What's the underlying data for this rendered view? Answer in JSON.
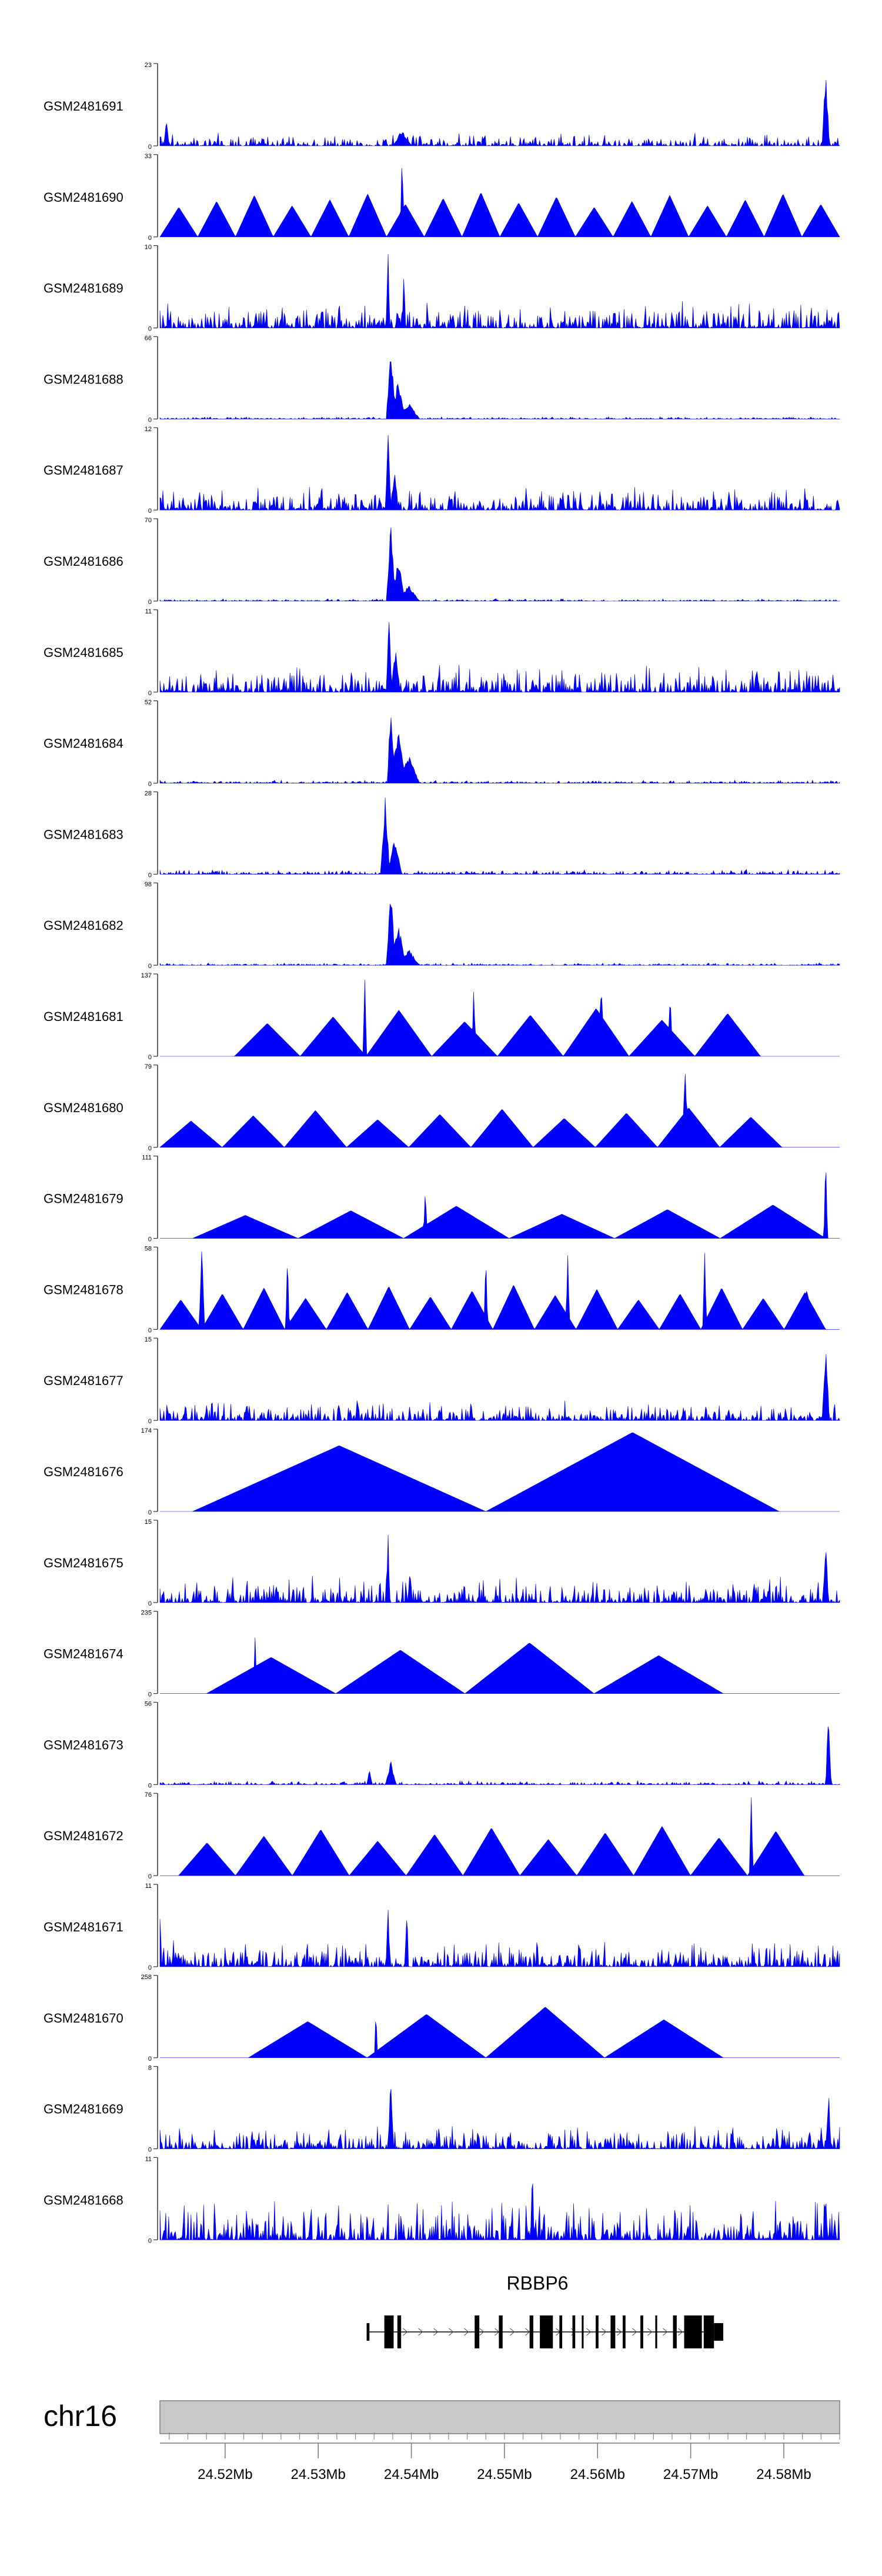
{
  "chart_data": {
    "type": "area",
    "title": "",
    "color": "#0000ff",
    "chromosome": "chr16",
    "x_range": [
      24.513,
      24.586
    ],
    "x_unit": "Mb",
    "x_ticks": [
      {
        "value": 24.52,
        "label": "24.52Mb"
      },
      {
        "value": 24.53,
        "label": "24.53Mb"
      },
      {
        "value": 24.54,
        "label": "24.54Mb"
      },
      {
        "value": 24.55,
        "label": "24.55Mb"
      },
      {
        "value": 24.56,
        "label": "24.56Mb"
      },
      {
        "value": 24.57,
        "label": "24.57Mb"
      },
      {
        "value": 24.58,
        "label": "24.58Mb"
      }
    ],
    "gene": {
      "name": "RBBP6",
      "start": 24.5352,
      "end": 24.5735,
      "strand": "+",
      "exons": [
        {
          "start": 24.5352,
          "end": 24.5355,
          "thick": false
        },
        {
          "start": 24.5371,
          "end": 24.5381,
          "thick": true
        },
        {
          "start": 24.5385,
          "end": 24.5389,
          "thick": true
        },
        {
          "start": 24.5468,
          "end": 24.5473,
          "thick": true
        },
        {
          "start": 24.5494,
          "end": 24.5498,
          "thick": true
        },
        {
          "start": 24.5527,
          "end": 24.5531,
          "thick": true
        },
        {
          "start": 24.5538,
          "end": 24.5552,
          "thick": true
        },
        {
          "start": 24.5559,
          "end": 24.5562,
          "thick": true
        },
        {
          "start": 24.5573,
          "end": 24.5576,
          "thick": true
        },
        {
          "start": 24.5583,
          "end": 24.5585,
          "thick": true
        },
        {
          "start": 24.5598,
          "end": 24.5601,
          "thick": true
        },
        {
          "start": 24.5614,
          "end": 24.5619,
          "thick": true
        },
        {
          "start": 24.5627,
          "end": 24.563,
          "thick": true
        },
        {
          "start": 24.5646,
          "end": 24.5649,
          "thick": true
        },
        {
          "start": 24.5662,
          "end": 24.5664,
          "thick": true
        },
        {
          "start": 24.5681,
          "end": 24.5685,
          "thick": true
        },
        {
          "start": 24.5693,
          "end": 24.5712,
          "thick": true
        },
        {
          "start": 24.5714,
          "end": 24.5725,
          "thick": true
        },
        {
          "start": 24.5725,
          "end": 24.5735,
          "thick": false
        }
      ]
    },
    "series": [
      {
        "name": "GSM2481691",
        "ymax": 23,
        "style": "dense",
        "noise": 0.16,
        "peaks": [
          [
            24.5845,
            1.0,
            0.0004
          ],
          [
            24.5137,
            0.35,
            0.0003
          ],
          [
            24.539,
            0.2,
            0.001
          ]
        ]
      },
      {
        "name": "GSM2481690",
        "ymax": 33,
        "style": "tri",
        "seed": 7,
        "base": 0.45,
        "count": 18,
        "peaks": [
          [
            24.539,
            1.0,
            0.0002
          ]
        ]
      },
      {
        "name": "GSM2481689",
        "ymax": 10,
        "style": "dense",
        "noise": 0.35,
        "peaks": [
          [
            24.5375,
            1.0,
            0.0002
          ],
          [
            24.5392,
            0.75,
            0.0002
          ]
        ]
      },
      {
        "name": "GSM2481688",
        "ymax": 66,
        "style": "dense",
        "noise": 0.03,
        "peaks": [
          [
            24.5378,
            1.0,
            0.0005
          ],
          [
            24.5386,
            0.5,
            0.0008
          ],
          [
            24.5397,
            0.2,
            0.0012
          ]
        ]
      },
      {
        "name": "GSM2481687",
        "ymax": 12,
        "style": "dense",
        "noise": 0.3,
        "peaks": [
          [
            24.5375,
            1.0,
            0.0003
          ],
          [
            24.5382,
            0.6,
            0.0004
          ]
        ]
      },
      {
        "name": "GSM2481686",
        "ymax": 70,
        "style": "dense",
        "noise": 0.03,
        "peaks": [
          [
            24.5378,
            1.0,
            0.0005
          ],
          [
            24.5386,
            0.5,
            0.0008
          ],
          [
            24.5397,
            0.2,
            0.0012
          ]
        ]
      },
      {
        "name": "GSM2481685",
        "ymax": 11,
        "style": "dense",
        "noise": 0.35,
        "peaks": [
          [
            24.5376,
            1.0,
            0.0003
          ],
          [
            24.5383,
            0.55,
            0.0005
          ]
        ]
      },
      {
        "name": "GSM2481684",
        "ymax": 52,
        "style": "dense",
        "noise": 0.04,
        "peaks": [
          [
            24.5378,
            1.0,
            0.0004
          ],
          [
            24.5386,
            0.75,
            0.0008
          ],
          [
            24.5397,
            0.35,
            0.0012
          ]
        ]
      },
      {
        "name": "GSM2481683",
        "ymax": 28,
        "style": "dense",
        "noise": 0.06,
        "peaks": [
          [
            24.5372,
            1.0,
            0.0005
          ],
          [
            24.5382,
            0.45,
            0.0008
          ]
        ]
      },
      {
        "name": "GSM2481682",
        "ymax": 98,
        "style": "dense",
        "noise": 0.03,
        "peaks": [
          [
            24.5378,
            1.0,
            0.0005
          ],
          [
            24.5386,
            0.55,
            0.0008
          ],
          [
            24.5397,
            0.2,
            0.0012
          ]
        ]
      },
      {
        "name": "GSM2481681",
        "ymax": 137,
        "style": "tri",
        "seed": 11,
        "base": 0.5,
        "count": 8,
        "start": 24.521,
        "end": 24.5775,
        "peaks": [
          [
            24.535,
            0.95,
            0.0002
          ],
          [
            24.5467,
            0.85,
            0.0002
          ],
          [
            24.5604,
            0.95,
            0.0002
          ],
          [
            24.5678,
            0.8,
            0.0002
          ]
        ]
      },
      {
        "name": "GSM2481680",
        "ymax": 79,
        "style": "tri",
        "seed": 13,
        "base": 0.4,
        "count": 10,
        "start": 24.513,
        "end": 24.5798,
        "peaks": [
          [
            24.5694,
            0.95,
            0.0003
          ]
        ]
      },
      {
        "name": "GSM2481679",
        "ymax": 111,
        "style": "tri",
        "seed": 17,
        "base": 0.35,
        "count": 6,
        "start": 24.5165,
        "end": 24.5845,
        "peaks": [
          [
            24.5845,
            1.0,
            0.0002
          ],
          [
            24.5415,
            0.6,
            0.0002
          ]
        ]
      },
      {
        "name": "GSM2481678",
        "ymax": 58,
        "style": "tri",
        "seed": 19,
        "base": 0.45,
        "count": 16,
        "start": 24.513,
        "end": 24.5845,
        "peaks": [
          [
            24.5175,
            1.0,
            0.0003
          ],
          [
            24.5267,
            0.92,
            0.0002
          ],
          [
            24.548,
            0.9,
            0.0002
          ],
          [
            24.5568,
            0.9,
            0.0002
          ],
          [
            24.5715,
            0.95,
            0.0002
          ],
          [
            24.5825,
            0.6,
            0.0002
          ]
        ]
      },
      {
        "name": "GSM2481677",
        "ymax": 15,
        "style": "dense",
        "noise": 0.25,
        "peaks": [
          [
            24.5845,
            1.0,
            0.0004
          ],
          [
            24.5342,
            0.35,
            0.0002
          ]
        ]
      },
      {
        "name": "GSM2481676",
        "ymax": 174,
        "style": "tri",
        "seed": 23,
        "base": 1.0,
        "count": 2,
        "start": 24.5165,
        "end": 24.5795,
        "peaks": []
      },
      {
        "name": "GSM2481675",
        "ymax": 15,
        "style": "dense",
        "noise": 0.35,
        "peaks": [
          [
            24.5375,
            1.0,
            0.0002
          ],
          [
            24.5845,
            0.85,
            0.0003
          ]
        ]
      },
      {
        "name": "GSM2481674",
        "ymax": 235,
        "style": "tri",
        "seed": 29,
        "base": 0.55,
        "count": 4,
        "start": 24.518,
        "end": 24.5735,
        "peaks": [
          [
            24.5232,
            0.85,
            0.0001
          ]
        ]
      },
      {
        "name": "GSM2481673",
        "ymax": 56,
        "style": "dense",
        "noise": 0.05,
        "peaks": [
          [
            24.5848,
            1.0,
            0.0003
          ],
          [
            24.5378,
            0.3,
            0.0006
          ],
          [
            24.5355,
            0.22,
            0.0003
          ]
        ]
      },
      {
        "name": "GSM2481672",
        "ymax": 76,
        "style": "tri",
        "seed": 31,
        "base": 0.5,
        "count": 11,
        "start": 24.515,
        "end": 24.5822,
        "peaks": [
          [
            24.5765,
            1.0,
            0.0002
          ]
        ]
      },
      {
        "name": "GSM2481671",
        "ymax": 11,
        "style": "dense",
        "noise": 0.35,
        "peaks": [
          [
            24.5375,
            0.95,
            0.0002
          ],
          [
            24.5395,
            0.85,
            0.0002
          ],
          [
            24.513,
            0.8,
            0.0002
          ]
        ]
      },
      {
        "name": "GSM2481670",
        "ymax": 258,
        "style": "tri",
        "seed": 37,
        "base": 0.55,
        "count": 4,
        "start": 24.5225,
        "end": 24.5735,
        "peaks": [
          [
            24.5362,
            0.85,
            0.0001
          ]
        ]
      },
      {
        "name": "GSM2481669",
        "ymax": 8,
        "style": "dense",
        "noise": 0.3,
        "peaks": [
          [
            24.5378,
            1.0,
            0.0003
          ],
          [
            24.5848,
            0.75,
            0.0003
          ]
        ]
      },
      {
        "name": "GSM2481668",
        "ymax": 11,
        "style": "dense",
        "noise": 0.5,
        "peaks": [
          [
            24.553,
            0.95,
            0.0002
          ],
          [
            24.5845,
            0.7,
            0.0002
          ]
        ]
      }
    ]
  }
}
